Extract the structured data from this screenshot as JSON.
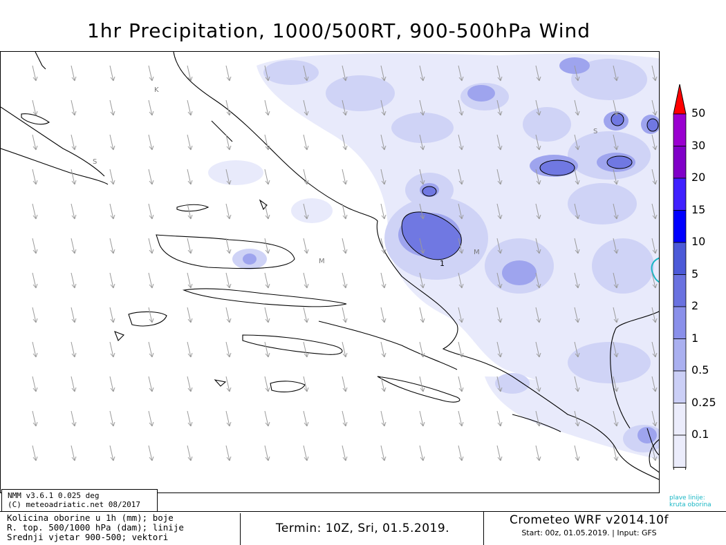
{
  "title": "1hr Precipitation, 1000/500RT, 900-500hPa Wind",
  "legend": {
    "levels": [
      "50",
      "30",
      "20",
      "15",
      "10",
      "5",
      "2",
      "1",
      "0.5",
      "0.25",
      "0.1"
    ],
    "colors": [
      "#ff0000",
      "#9a00d0",
      "#8000c8",
      "#4020ff",
      "#0000ff",
      "#4c5ad8",
      "#6a72e0",
      "#8a90ea",
      "#aab0f0",
      "#cbcff6",
      "#ebecfb"
    ]
  },
  "map_labels": [
    "K",
    "S",
    "S",
    "M",
    "M"
  ],
  "contour_label": "1",
  "cyan_note": [
    "plave linije:",
    "kruta oborina"
  ],
  "model_info": [
    "NMM v3.6.1 0.025 deg",
    "(C) meteoadriatic.net 08/2017"
  ],
  "description": [
    "Kolicina oborine u 1h (mm); boje",
    "R. top. 500/1000 hPa (dam); linije",
    "Srednji vjetar 900-500; vektori"
  ],
  "termin": "Termin: 10Z, Sri, 01.5.2019.",
  "wrf_title": "Crometeo WRF v2014.10f",
  "wrf_start": "Start: 00z, 01.05.2019. | Input: GFS"
}
